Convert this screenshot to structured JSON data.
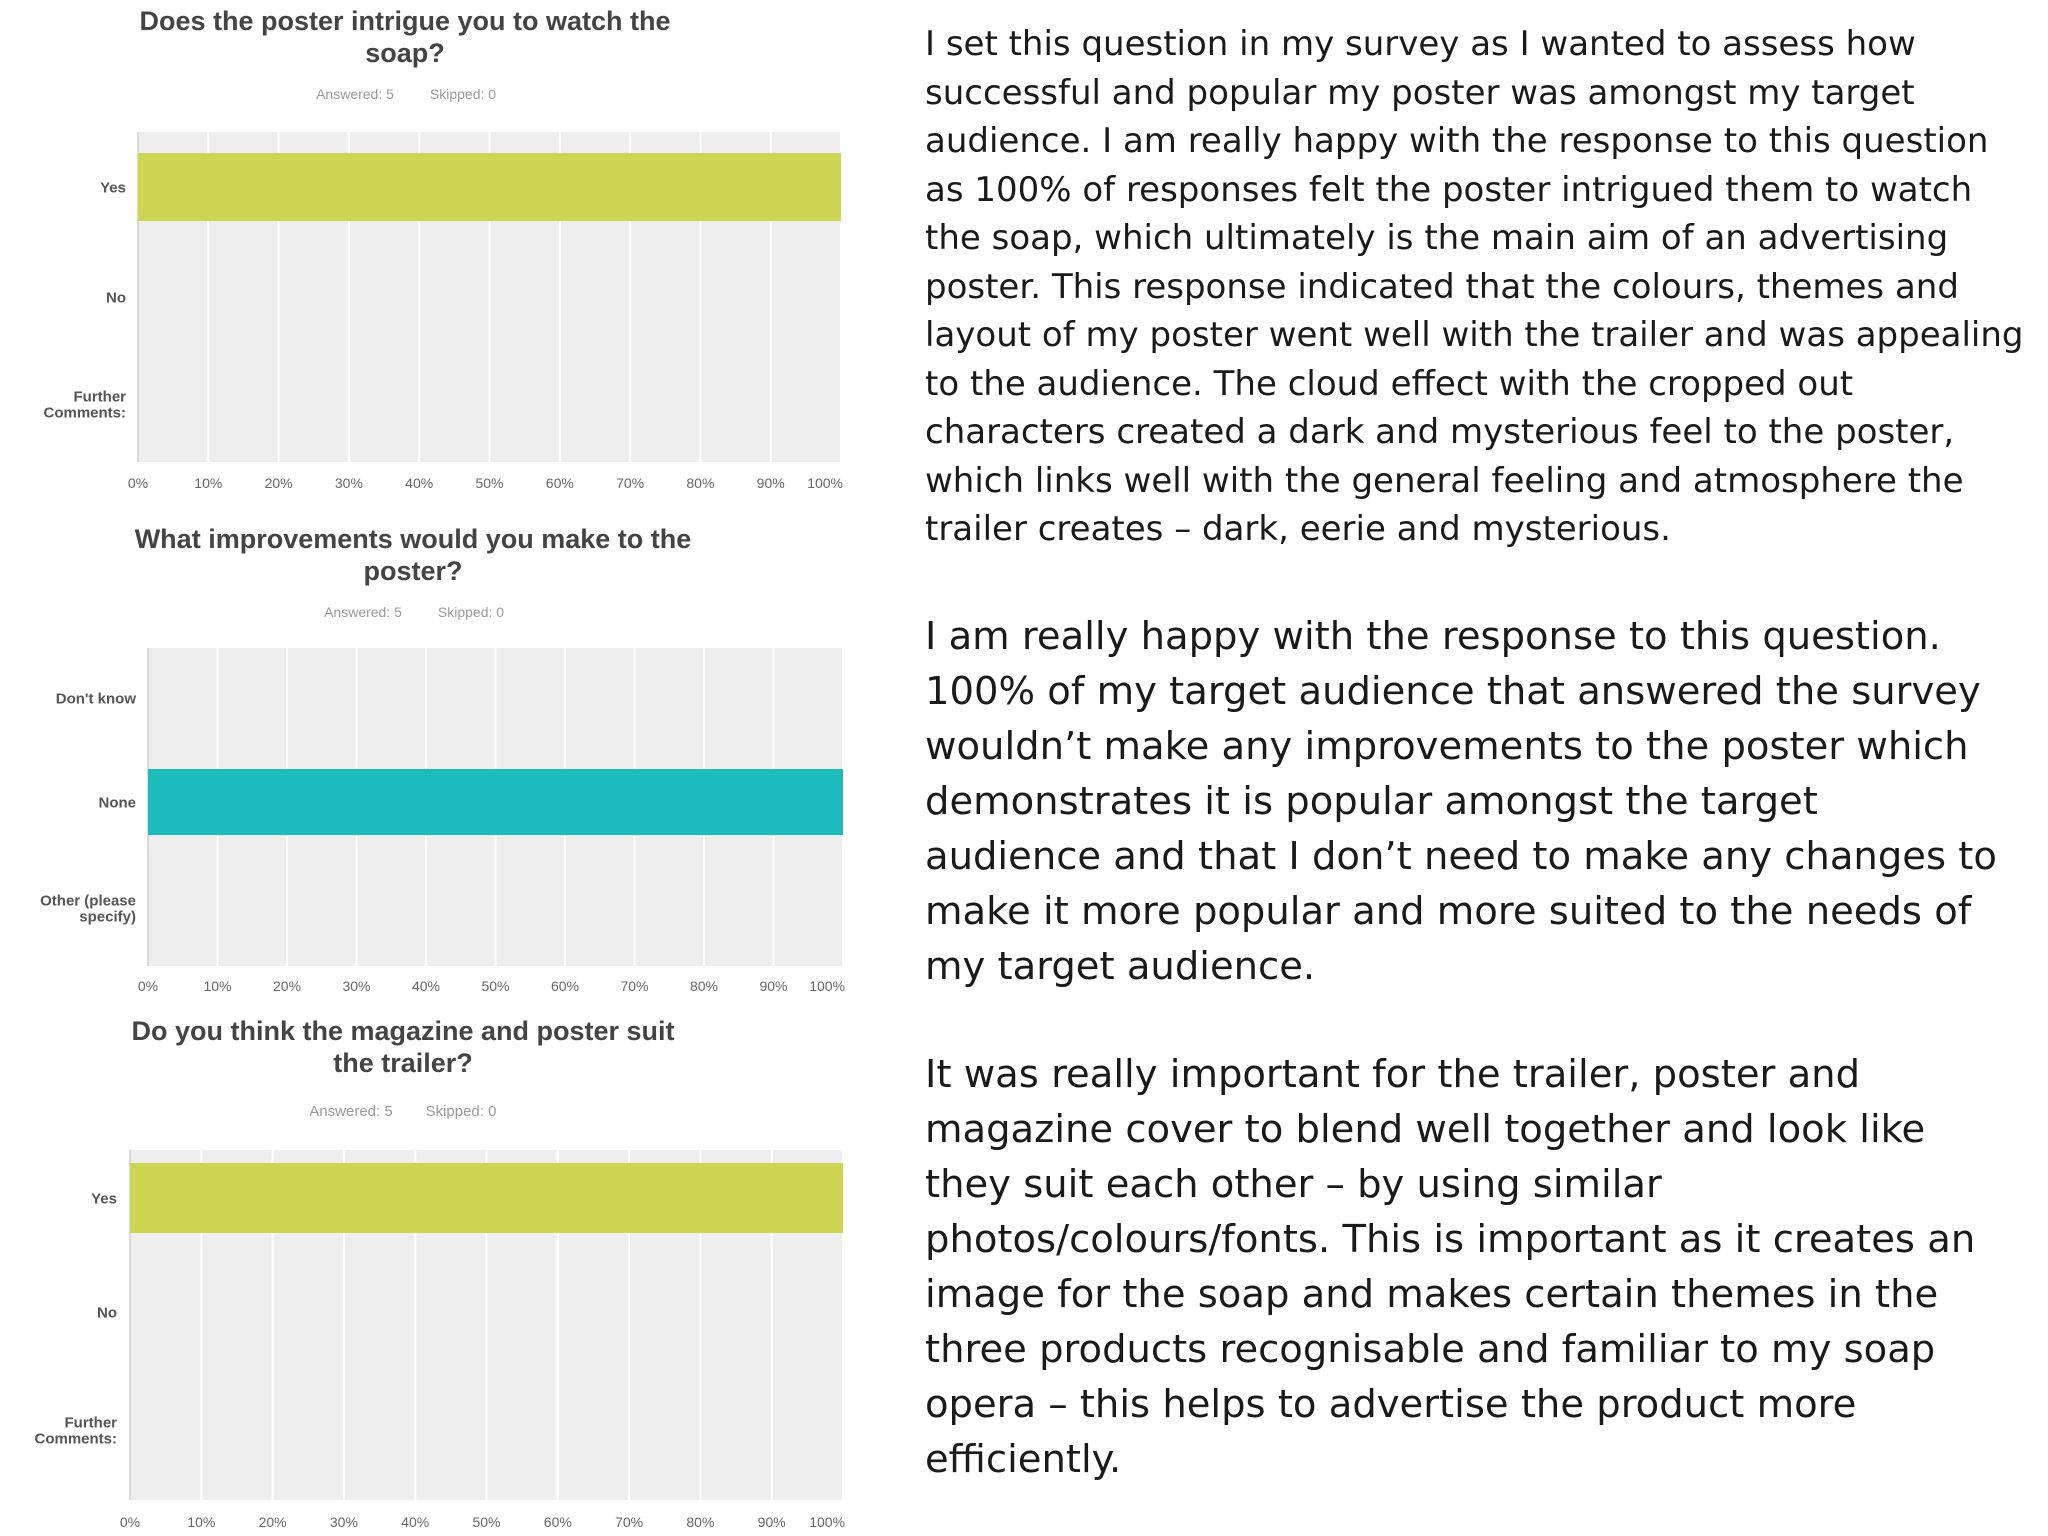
{
  "chart_data": [
    {
      "type": "bar",
      "title_line1": "Does the poster intrigue you to watch the",
      "title_line2": "soap?",
      "answered": "Answered: 5",
      "skipped": "Skipped: 0",
      "categories": [
        "Yes",
        "No",
        "Further Comments:"
      ],
      "values": [
        100,
        0,
        0
      ],
      "xticks": [
        "0%",
        "10%",
        "20%",
        "30%",
        "40%",
        "50%",
        "60%",
        "70%",
        "80%",
        "90%",
        "100%"
      ],
      "xlim": [
        0,
        100
      ],
      "orientation": "horizontal",
      "grid": true,
      "bar_color": "#cdd552"
    },
    {
      "type": "bar",
      "title_line1": "What improvements would you make to the",
      "title_line2": "poster?",
      "answered": "Answered: 5",
      "skipped": "Skipped: 0",
      "categories": [
        "Don't know",
        "None",
        "Other (please specify)"
      ],
      "values": [
        0,
        100,
        0
      ],
      "xticks": [
        "0%",
        "10%",
        "20%",
        "30%",
        "40%",
        "50%",
        "60%",
        "70%",
        "80%",
        "90%",
        "100%"
      ],
      "xlim": [
        0,
        100
      ],
      "orientation": "horizontal",
      "grid": true,
      "bar_color": "#1bbcbb"
    },
    {
      "type": "bar",
      "title_line1": "Do you think the magazine and poster suit",
      "title_line2": "the trailer?",
      "answered": "Answered: 5",
      "skipped": "Skipped: 0",
      "categories": [
        "Yes",
        "No",
        "Further Comments:"
      ],
      "values": [
        100,
        0,
        0
      ],
      "xticks": [
        "0%",
        "10%",
        "20%",
        "30%",
        "40%",
        "50%",
        "60%",
        "70%",
        "80%",
        "90%",
        "100%"
      ],
      "xlim": [
        0,
        100
      ],
      "orientation": "horizontal",
      "grid": true,
      "bar_color": "#cdd552"
    }
  ],
  "commentary": {
    "para1": "I set this question in my survey as I wanted to assess how successful and popular my poster was amongst my target audience. I am really happy with the response to this question as 100% of responses felt the poster intrigued them to watch the soap, which ultimately is the main aim of an advertising poster. This response indicated that the colours, themes and layout of my poster went well with the trailer and was appealing to the audience. The cloud effect with the cropped out characters created a dark and mysterious feel to the poster, which links well with the general feeling and atmosphere the trailer creates – dark, eerie and mysterious.",
    "para2": "I am really happy with the response to this question. 100% of my target audience that answered the survey wouldn’t make any improvements to the poster which demonstrates it is popular amongst the target audience and that I don’t need to make any changes to make it more popular and more suited to the needs of my target audience.",
    "para3": "It was really important for the trailer, poster and magazine cover to blend well together and look like they suit each other – by using similar photos/colours/fonts. This is important as it creates an image for the soap and makes certain themes in the three products recognisable and familiar to my soap opera – this helps to advertise the product more efficiently."
  }
}
